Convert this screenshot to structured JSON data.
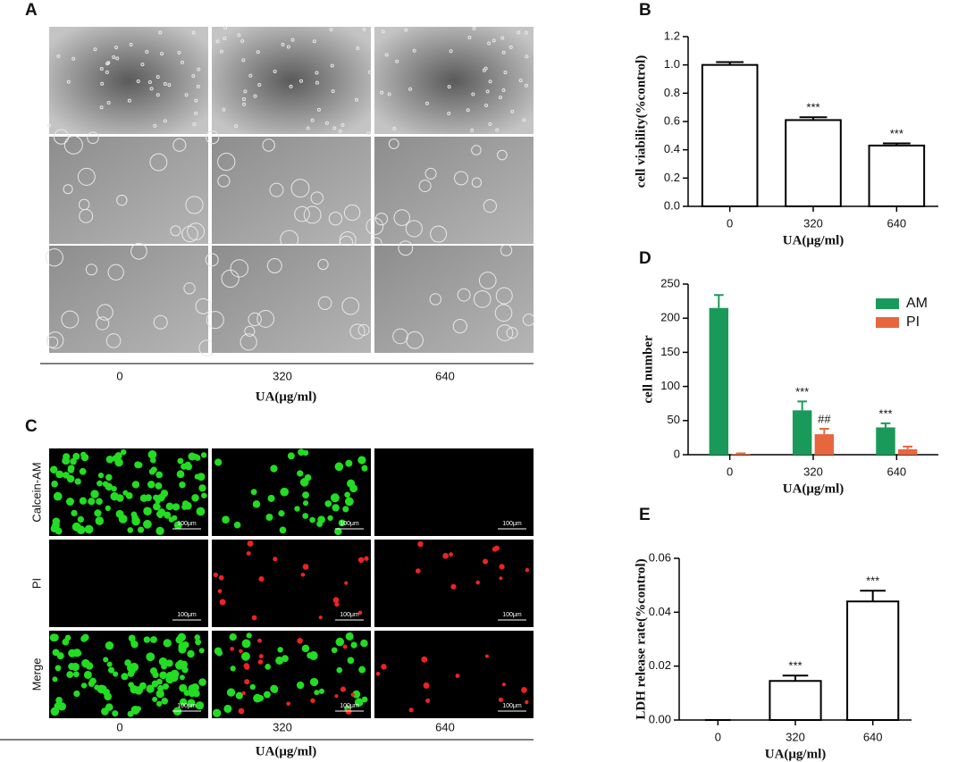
{
  "panels": [
    {
      "label": "A",
      "columns": [
        "0",
        "320",
        "640"
      ],
      "xlabel": "UA(μg/ml)"
    },
    {
      "label": "C",
      "columns": [
        "0",
        "320",
        "640"
      ],
      "rows": [
        "Calcein-AM",
        "PI",
        "Merge"
      ],
      "scale_bar": "100μm",
      "xlabel": "UA(μg/ml)"
    }
  ],
  "chart_data": [
    {
      "type": "bar",
      "panel_label": "B",
      "ylabel": "cell viability(%control)",
      "xlabel": "UA(μg/ml)",
      "categories": [
        "0",
        "320",
        "640"
      ],
      "values": [
        1.0,
        0.61,
        0.43
      ],
      "errors": [
        0.02,
        0.02,
        0.015
      ],
      "annotations": [
        null,
        "***",
        "***"
      ],
      "color": "#ffffff",
      "ylim": [
        0,
        1.2
      ],
      "yticks": [
        {
          "value": 0,
          "label": "0.0"
        },
        0.2,
        0.4,
        0.6,
        0.8,
        {
          "value": 1,
          "label": "1.0"
        },
        1.2
      ]
    },
    {
      "type": "grouped_bar",
      "panel_label": "D",
      "ylabel": "cell number",
      "xlabel": "UA(μg/ml)",
      "categories": [
        "0",
        "320",
        "640"
      ],
      "series": [
        {
          "name": "AM",
          "color": "#1a9a5a",
          "values": [
            215,
            65,
            40
          ],
          "errors": [
            19,
            13,
            6
          ],
          "annotations": [
            null,
            "***",
            "***"
          ]
        },
        {
          "name": "PI",
          "color": "#e8663e",
          "values": [
            1,
            30,
            8
          ],
          "errors": [
            1,
            8,
            4
          ],
          "annotations": [
            null,
            "##",
            null
          ]
        }
      ],
      "legend": "upper right",
      "ylim": [
        0,
        250
      ],
      "yticks": [
        0,
        50,
        100,
        150,
        200,
        250
      ]
    },
    {
      "type": "bar",
      "panel_label": "E",
      "ylabel": "LDH release rate(%control)",
      "xlabel": "UA(μg/ml)",
      "categories": [
        "0",
        "320",
        "640"
      ],
      "values": [
        0,
        0.0145,
        0.044
      ],
      "errors": [
        0,
        0.002,
        0.004
      ],
      "annotations": [
        null,
        "***",
        "***"
      ],
      "color": "#ffffff",
      "ylim": [
        0,
        0.06
      ],
      "yticks": [
        {
          "value": 0,
          "label": "0.00"
        },
        0.02,
        0.04,
        0.06
      ]
    }
  ]
}
